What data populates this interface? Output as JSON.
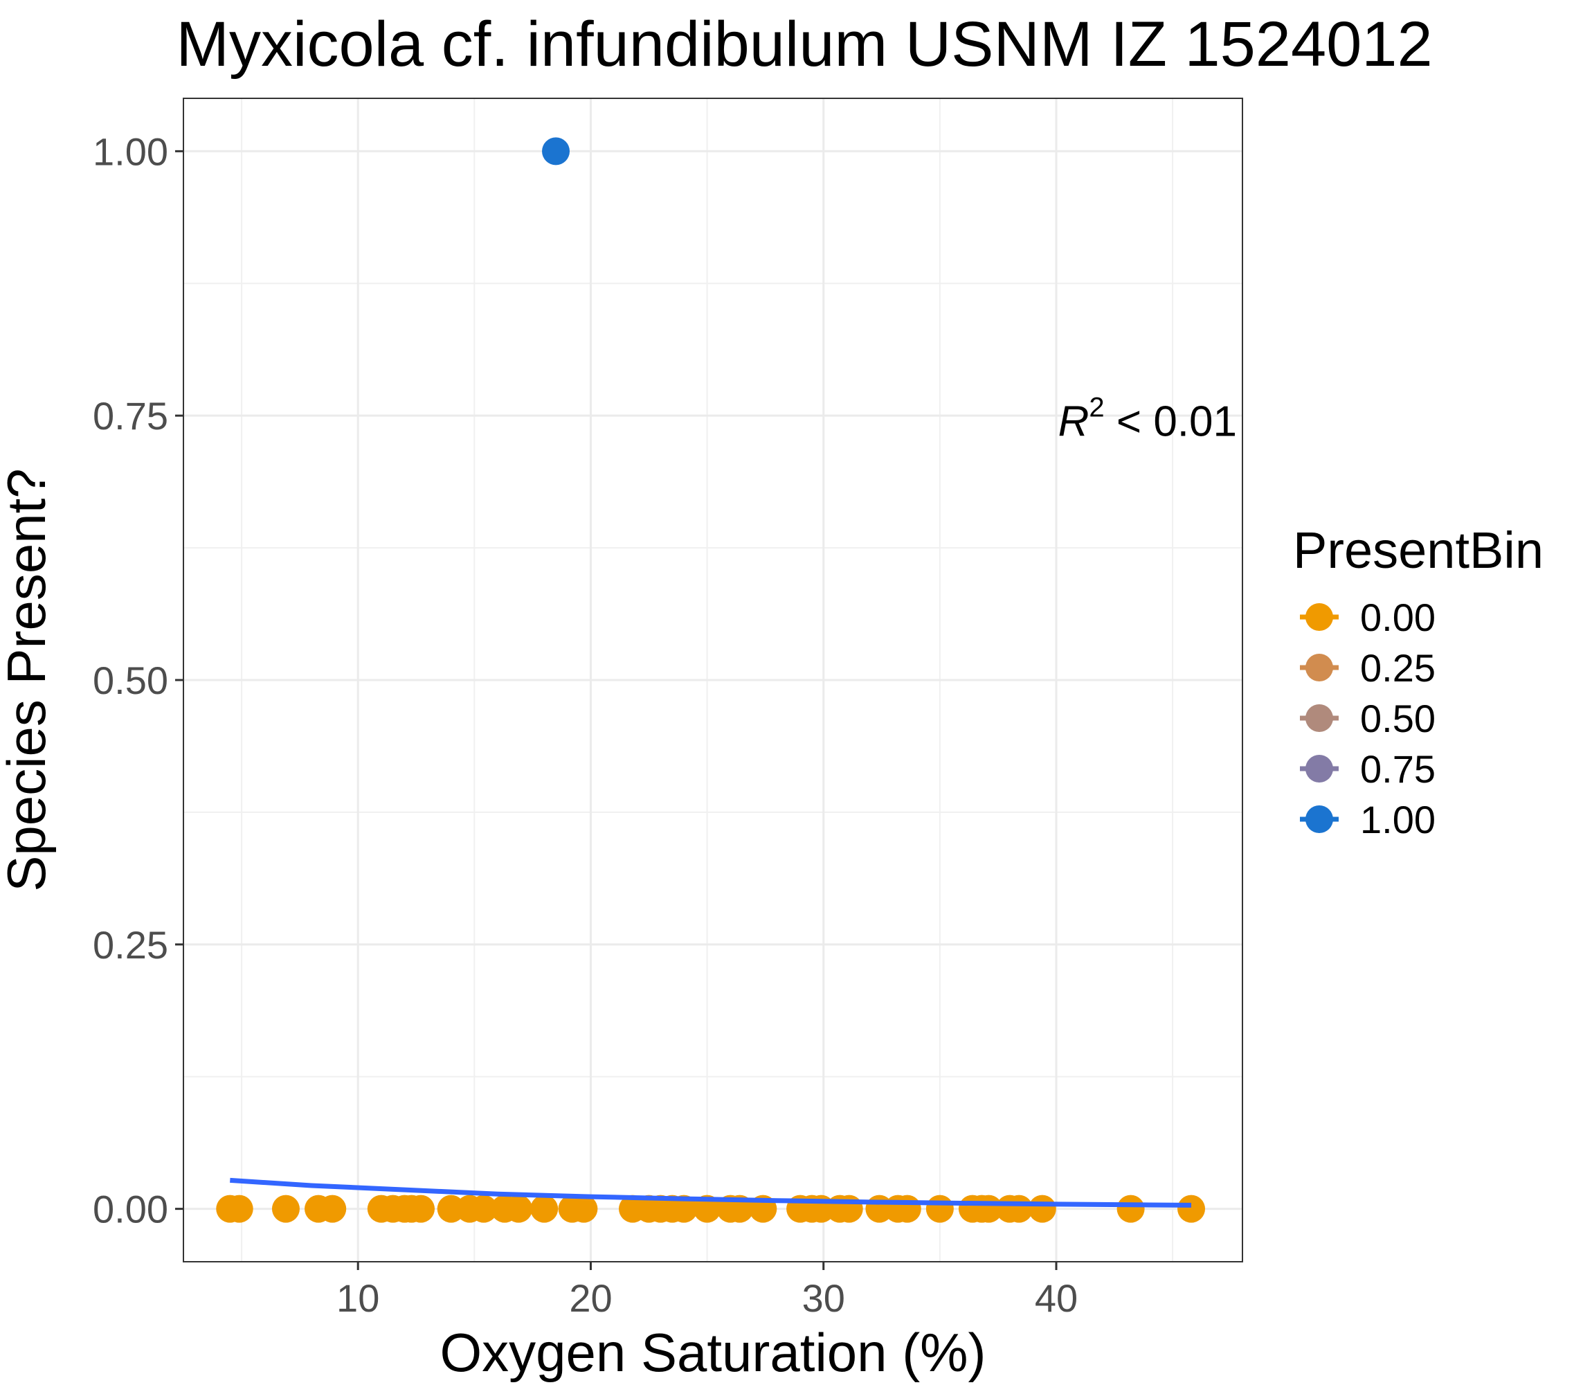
{
  "chart_data": {
    "type": "scatter",
    "title": "Myxicola cf. infundibulum USNM IZ 1524012",
    "xlabel": "Oxygen Saturation (%)",
    "ylabel": "Species Present?",
    "xlim": [
      2.5,
      48
    ],
    "ylim": [
      -0.05,
      1.05
    ],
    "x_ticks": [
      10,
      20,
      30,
      40
    ],
    "y_ticks": [
      0.0,
      0.25,
      0.5,
      0.75,
      1.0
    ],
    "x_tick_labels": [
      "10",
      "20",
      "30",
      "40"
    ],
    "y_tick_labels": [
      "0.00",
      "0.25",
      "0.50",
      "0.75",
      "1.00"
    ],
    "grid": true,
    "legend": {
      "title": "PresentBin",
      "position": "right",
      "entries": [
        {
          "label": "0.00",
          "value": 0.0,
          "color": "#f09a00"
        },
        {
          "label": "0.25",
          "value": 0.25,
          "color": "#d18c4f"
        },
        {
          "label": "0.50",
          "value": 0.5,
          "color": "#b08a7c"
        },
        {
          "label": "0.75",
          "value": 0.75,
          "color": "#837ba6"
        },
        {
          "label": "1.00",
          "value": 1.0,
          "color": "#1b74d0"
        }
      ]
    },
    "series": [
      {
        "values": [
          {
            "x": 4.5,
            "y": 0
          },
          {
            "x": 4.9,
            "y": 0
          },
          {
            "x": 6.9,
            "y": 0
          },
          {
            "x": 8.3,
            "y": 0
          },
          {
            "x": 8.9,
            "y": 0
          },
          {
            "x": 11.0,
            "y": 0
          },
          {
            "x": 11.5,
            "y": 0
          },
          {
            "x": 12.0,
            "y": 0
          },
          {
            "x": 12.3,
            "y": 0
          },
          {
            "x": 12.7,
            "y": 0
          },
          {
            "x": 14.0,
            "y": 0
          },
          {
            "x": 14.8,
            "y": 0
          },
          {
            "x": 15.4,
            "y": 0
          },
          {
            "x": 16.3,
            "y": 0
          },
          {
            "x": 16.9,
            "y": 0
          },
          {
            "x": 18.0,
            "y": 0
          },
          {
            "x": 19.2,
            "y": 0
          },
          {
            "x": 19.7,
            "y": 0
          },
          {
            "x": 21.8,
            "y": 0
          },
          {
            "x": 22.5,
            "y": 0
          },
          {
            "x": 23.0,
            "y": 0
          },
          {
            "x": 23.5,
            "y": 0
          },
          {
            "x": 24.0,
            "y": 0
          },
          {
            "x": 25.0,
            "y": 0
          },
          {
            "x": 26.0,
            "y": 0
          },
          {
            "x": 26.4,
            "y": 0
          },
          {
            "x": 27.4,
            "y": 0
          },
          {
            "x": 29.0,
            "y": 0
          },
          {
            "x": 29.5,
            "y": 0
          },
          {
            "x": 29.9,
            "y": 0
          },
          {
            "x": 30.7,
            "y": 0
          },
          {
            "x": 31.1,
            "y": 0
          },
          {
            "x": 32.4,
            "y": 0
          },
          {
            "x": 33.2,
            "y": 0
          },
          {
            "x": 33.6,
            "y": 0
          },
          {
            "x": 35.0,
            "y": 0
          },
          {
            "x": 36.4,
            "y": 0
          },
          {
            "x": 36.8,
            "y": 0
          },
          {
            "x": 37.1,
            "y": 0
          },
          {
            "x": 38.0,
            "y": 0
          },
          {
            "x": 38.4,
            "y": 0
          },
          {
            "x": 39.4,
            "y": 0
          },
          {
            "x": 43.2,
            "y": 0
          },
          {
            "x": 45.8,
            "y": 0
          },
          {
            "x": 18.5,
            "y": 1
          }
        ]
      }
    ],
    "fit_line": {
      "color": "#3366ff",
      "values": [
        {
          "x": 4.5,
          "y": 0.027
        },
        {
          "x": 8,
          "y": 0.022
        },
        {
          "x": 12,
          "y": 0.018
        },
        {
          "x": 16,
          "y": 0.014
        },
        {
          "x": 20,
          "y": 0.0115
        },
        {
          "x": 24,
          "y": 0.0095
        },
        {
          "x": 28,
          "y": 0.0078
        },
        {
          "x": 32,
          "y": 0.0064
        },
        {
          "x": 36,
          "y": 0.0053
        },
        {
          "x": 40,
          "y": 0.0044
        },
        {
          "x": 44,
          "y": 0.0037
        },
        {
          "x": 45.8,
          "y": 0.0034
        }
      ]
    },
    "annotation": {
      "base": "R",
      "superscript": "2",
      "text": " < 0.01",
      "x": 48,
      "y": 0.74
    }
  }
}
